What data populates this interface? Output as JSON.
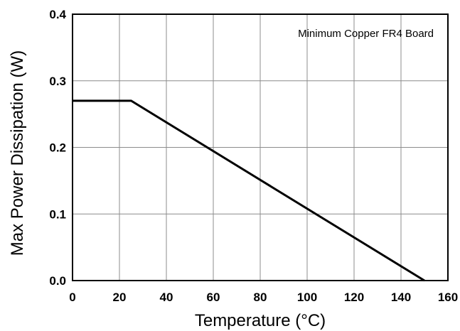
{
  "chart_data": {
    "type": "line",
    "title": "",
    "xlabel": "Temperature (°C)",
    "ylabel": "Max Power Dissipation (W)",
    "xlim": [
      0,
      160
    ],
    "ylim": [
      0,
      0.4
    ],
    "xticks": [
      "0",
      "20",
      "40",
      "60",
      "80",
      "100",
      "120",
      "140",
      "160"
    ],
    "yticks": [
      "0.0",
      "0.1",
      "0.2",
      "0.3",
      "0.4"
    ],
    "grid": true,
    "annotation": "Minimum Copper FR4 Board",
    "series": [
      {
        "x": [
          0,
          25,
          150
        ],
        "y": [
          0.27,
          0.27,
          0.0
        ],
        "color": "#000000"
      }
    ]
  }
}
